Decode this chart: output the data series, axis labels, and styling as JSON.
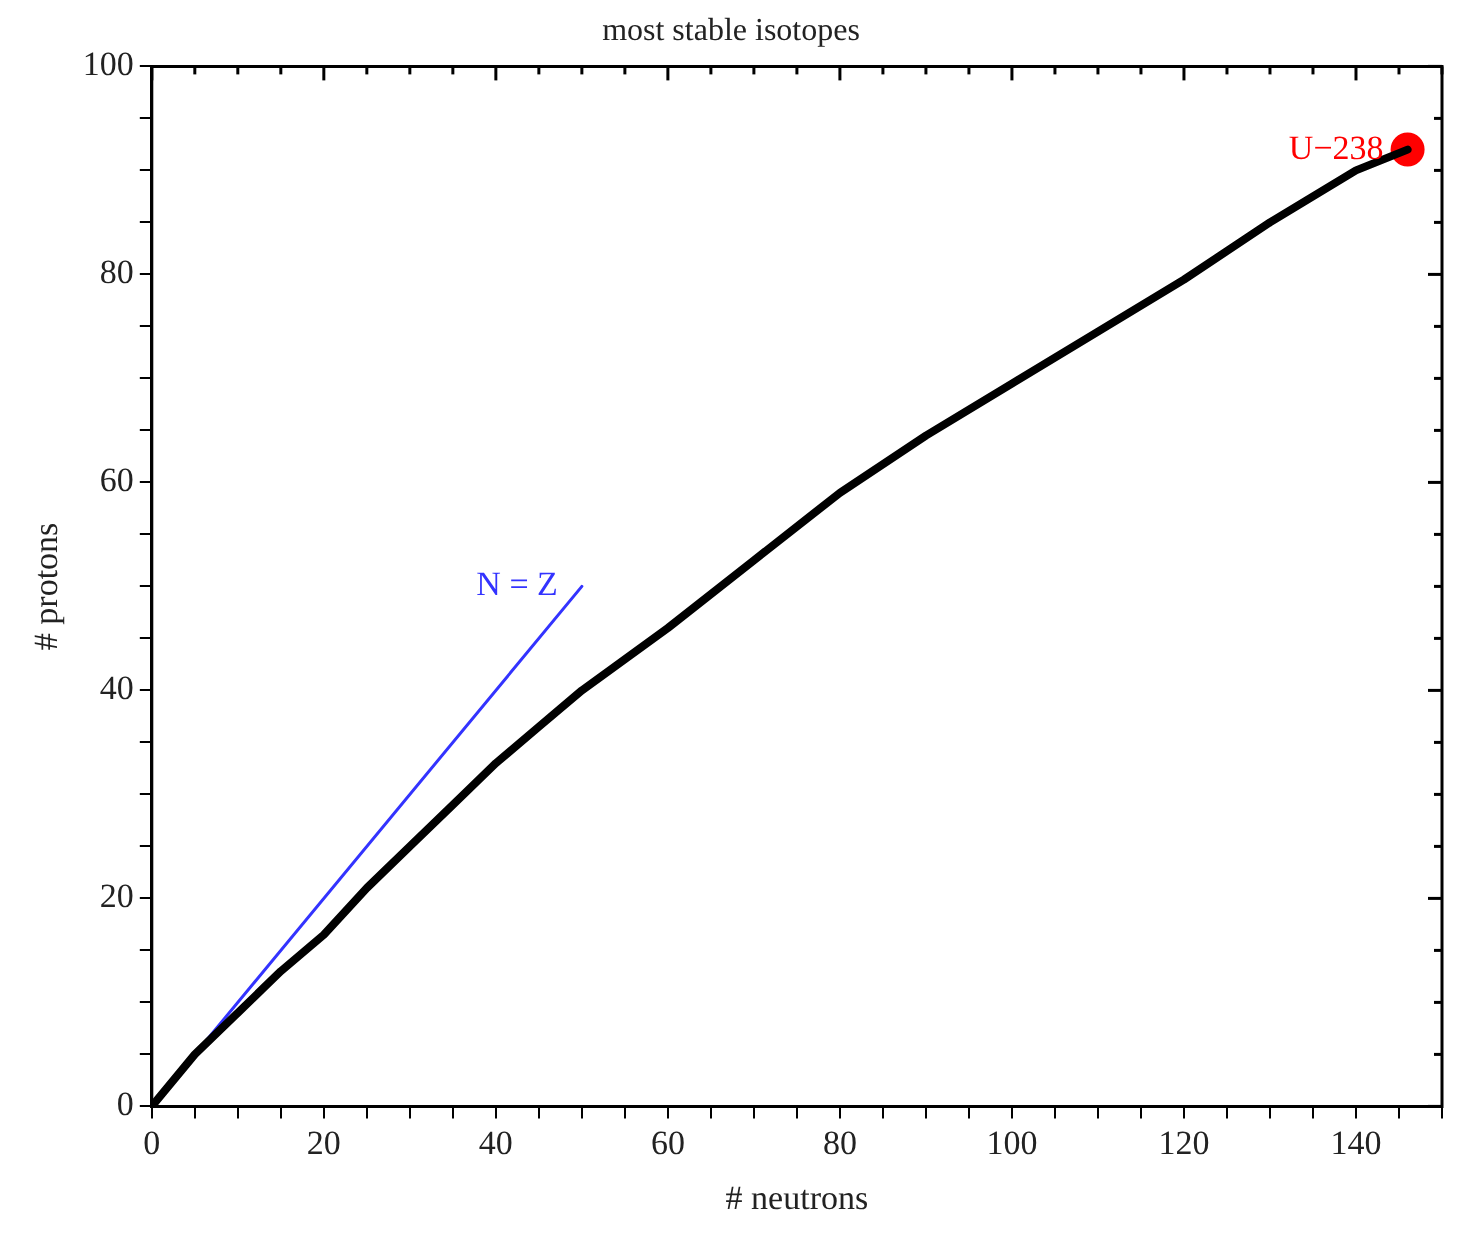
{
  "chart_data": {
    "type": "line",
    "title": "most stable isotopes",
    "xlabel": "# neutrons",
    "ylabel": "# protons",
    "xlim": [
      0,
      150
    ],
    "ylim": [
      0,
      100
    ],
    "xticks": [
      0,
      {
        "value": 5,
        "label": null
      },
      {
        "value": 10,
        "label": null
      },
      {
        "value": 15,
        "label": null
      },
      20,
      {
        "value": 25,
        "label": null
      },
      {
        "value": 30,
        "label": null
      },
      {
        "value": 35,
        "label": null
      },
      40,
      {
        "value": 45,
        "label": null
      },
      {
        "value": 50,
        "label": null
      },
      {
        "value": 55,
        "label": null
      },
      60,
      {
        "value": 65,
        "label": null
      },
      {
        "value": 70,
        "label": null
      },
      {
        "value": 75,
        "label": null
      },
      80,
      {
        "value": 85,
        "label": null
      },
      {
        "value": 90,
        "label": null
      },
      {
        "value": 95,
        "label": null
      },
      100,
      {
        "value": 105,
        "label": null
      },
      {
        "value": 110,
        "label": null
      },
      {
        "value": 115,
        "label": null
      },
      120,
      {
        "value": 125,
        "label": null
      },
      {
        "value": 130,
        "label": null
      },
      {
        "value": 135,
        "label": null
      },
      140,
      {
        "value": 145,
        "label": null
      },
      {
        "value": 150,
        "label": null
      }
    ],
    "yticks": [
      0,
      {
        "value": 5,
        "label": null
      },
      {
        "value": 10,
        "label": null
      },
      {
        "value": 15,
        "label": null
      },
      20,
      {
        "value": 25,
        "label": null
      },
      {
        "value": 30,
        "label": null
      },
      {
        "value": 35,
        "label": null
      },
      40,
      {
        "value": 45,
        "label": null
      },
      {
        "value": 50,
        "label": null
      },
      {
        "value": 55,
        "label": null
      },
      60,
      {
        "value": 65,
        "label": null
      },
      {
        "value": 70,
        "label": null
      },
      {
        "value": 75,
        "label": null
      },
      80,
      {
        "value": 85,
        "label": null
      },
      {
        "value": 90,
        "label": null
      },
      {
        "value": 95,
        "label": null
      },
      100
    ],
    "grid": false,
    "legend": false,
    "marker": "none",
    "line_style": "solid",
    "series": [
      {
        "type": "line",
        "color": "#000000",
        "x": [
          0,
          5,
          10,
          15,
          20,
          25,
          30,
          35,
          40,
          45,
          50,
          55,
          60,
          70,
          80,
          90,
          100,
          110,
          120,
          130,
          140,
          146
        ],
        "values": [
          0,
          5,
          9,
          13,
          16.5,
          21,
          25,
          29,
          33,
          36.5,
          40,
          43,
          46,
          52.5,
          59,
          64.5,
          69.5,
          74.5,
          79.5,
          85,
          90,
          92
        ]
      },
      {
        "type": "line",
        "name": "N = Z",
        "color": "#3333ff",
        "x": [
          0,
          50
        ],
        "values": [
          0,
          50
        ]
      },
      {
        "type": "scatter",
        "name": "U−238",
        "color": "#ff0000",
        "x": [
          146
        ],
        "values": [
          92
        ],
        "marker": "circle"
      }
    ]
  }
}
